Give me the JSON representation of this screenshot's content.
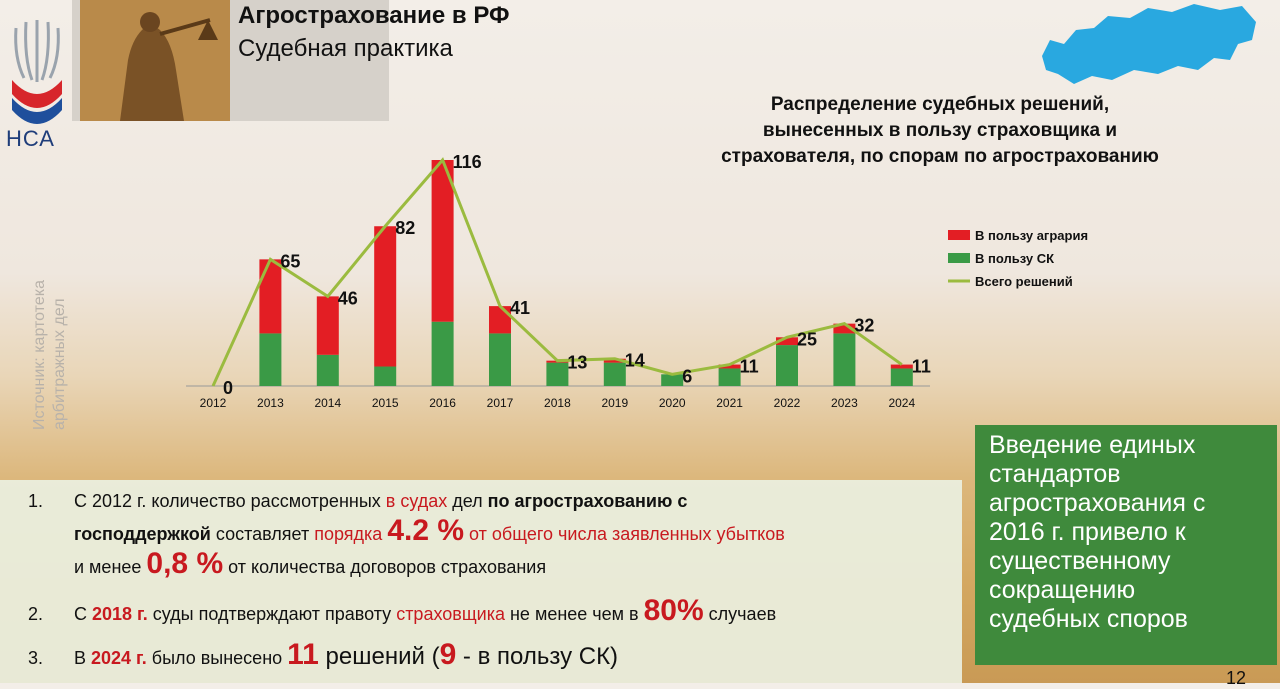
{
  "header": {
    "logo_text": "НСА",
    "title": "Агрострахование в РФ",
    "subtitle": "Судебная практика"
  },
  "chart_title_lines": [
    "Распределение судебных решений,",
    "вынесенных в пользу страховщика и",
    "страхователя, по спорам по агрострахованию"
  ],
  "source_lines": [
    "Источник: картотека",
    "арбитражных дел"
  ],
  "chart_data": {
    "type": "bar",
    "stacked": true,
    "categories": [
      "2012",
      "2013",
      "2014",
      "2015",
      "2016",
      "2017",
      "2018",
      "2019",
      "2020",
      "2021",
      "2022",
      "2023",
      "2024"
    ],
    "series": [
      {
        "name": "В пользу агрария",
        "color": "#e31e24",
        "values": [
          0,
          38,
          30,
          72,
          83,
          14,
          1,
          2,
          0,
          2,
          4,
          5,
          2
        ]
      },
      {
        "name": "В пользу СК",
        "color": "#3a9a46",
        "values": [
          0,
          27,
          16,
          10,
          33,
          27,
          12,
          12,
          6,
          9,
          21,
          27,
          9
        ]
      }
    ],
    "line": {
      "name": "Всего решений",
      "color": "#9bbb3f",
      "values": [
        0,
        65,
        46,
        82,
        116,
        41,
        13,
        14,
        6,
        11,
        25,
        32,
        11
      ]
    },
    "data_labels": [
      "0",
      "65",
      "46",
      "82",
      "116",
      "41",
      "13",
      "14",
      "6",
      "11",
      "25",
      "32",
      "11"
    ],
    "ylim": [
      0,
      116
    ],
    "legend_position": "right"
  },
  "green_box_lines": [
    "Введение единых",
    "стандартов",
    "агрострахования с",
    "2016 г. привело к",
    "существенному",
    "сокращению",
    "судебных споров"
  ],
  "notes": {
    "n1": {
      "num": "1.",
      "a": "С 2012 г. количество рассмотренных ",
      "b": "в судах",
      "c": " дел ",
      "d": "по агрострахованию с",
      "e": "господдержкой",
      "f": " составляет ",
      "g": "порядка ",
      "h": "4.2 %",
      "i": " от общего числа заявленных убытков",
      "j": "и менее ",
      "k": "0,8 %",
      "l": " от количества договоров страхования"
    },
    "n2": {
      "num": "2.",
      "a": "С ",
      "b": "2018 г.",
      "c": " суды подтверждают правоту ",
      "d": "страховщика",
      "e": " не менее чем в ",
      "f": "80%",
      "g": " случаев"
    },
    "n3": {
      "num": "3.",
      "a": "В ",
      "b": "2024 г.",
      "c": " было вынесено ",
      "d": "11",
      "e": " решений (",
      "f": "9",
      "g": " - в пользу СК)"
    }
  },
  "page_number": "12"
}
